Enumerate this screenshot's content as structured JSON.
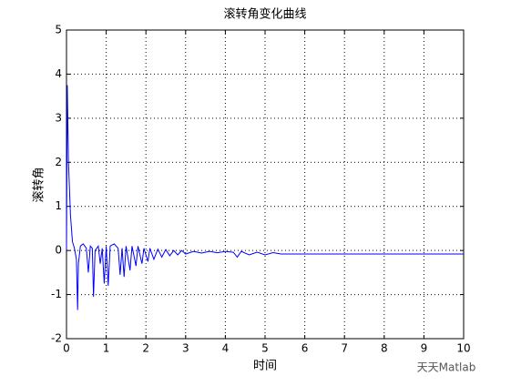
{
  "chart_data": {
    "type": "line",
    "title": "滚转角变化曲线",
    "xlabel": "时间",
    "ylabel": "滚转角",
    "x": [
      0,
      0.02,
      0.05,
      0.1,
      0.15,
      0.2,
      0.25,
      0.28,
      0.3,
      0.35,
      0.42,
      0.5,
      0.55,
      0.6,
      0.65,
      0.68,
      0.72,
      0.8,
      0.85,
      0.9,
      0.95,
      1.0,
      1.05,
      1.1,
      1.2,
      1.3,
      1.35,
      1.4,
      1.45,
      1.5,
      1.6,
      1.65,
      1.75,
      1.8,
      1.9,
      1.95,
      2.05,
      2.1,
      2.2,
      2.3,
      2.4,
      2.5,
      2.6,
      2.7,
      2.8,
      2.9,
      3.0,
      3.2,
      3.4,
      3.6,
      3.8,
      4.0,
      4.2,
      4.3,
      4.4,
      4.6,
      4.8,
      5.0,
      5.2,
      5.4,
      10
    ],
    "values": [
      0,
      3.75,
      2.0,
      0.8,
      0.2,
      0.05,
      -0.2,
      -1.35,
      -0.3,
      0.1,
      0.15,
      0.05,
      -0.5,
      0.1,
      0.05,
      -1.05,
      0.0,
      0.1,
      -0.3,
      0.05,
      -0.75,
      0.1,
      -0.8,
      0.1,
      0.15,
      0.05,
      -0.55,
      0.05,
      -0.6,
      0.1,
      -0.45,
      0.1,
      -0.35,
      0.1,
      -0.3,
      0.05,
      -0.25,
      0.05,
      -0.2,
      0.03,
      -0.15,
      0.02,
      -0.12,
      0.0,
      -0.1,
      0.0,
      -0.08,
      -0.02,
      -0.06,
      -0.02,
      -0.05,
      -0.02,
      -0.04,
      -0.15,
      -0.02,
      -0.1,
      -0.04,
      -0.1,
      -0.05,
      -0.08,
      -0.08
    ],
    "color": "#0000ff",
    "xlim": [
      0,
      10
    ],
    "xticks": [
      0,
      1,
      2,
      3,
      4,
      5,
      6,
      7,
      8,
      9,
      10
    ],
    "ylim": [
      -2,
      5
    ],
    "yticks": [
      -2,
      -1,
      0,
      1,
      2,
      3,
      4,
      5
    ],
    "grid": true
  },
  "watermark": "天天Matlab"
}
